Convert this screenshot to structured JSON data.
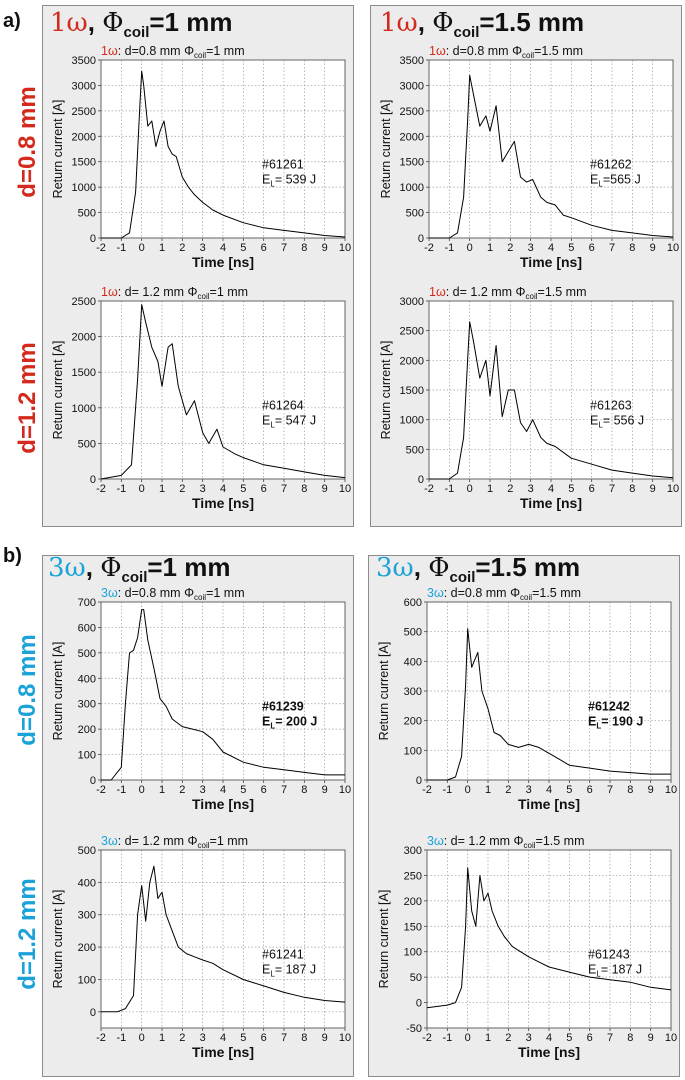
{
  "section_labels": [
    "a)",
    "b)"
  ],
  "colors": {
    "red": "#d42a1e",
    "blue": "#1ba2d8",
    "grid": "#9a9a9a",
    "frame": "#8c8c8c",
    "panel_bg": "#ececec"
  },
  "figure": {
    "a": {
      "col_titles": [
        {
          "omega": "1ω",
          "sep": ", ",
          "phi": "Φ",
          "sub": "coil",
          "val": "=1 mm"
        },
        {
          "omega": "1ω",
          "sep": ", ",
          "phi": "Φ",
          "sub": "coil",
          "val": "=1.5 mm"
        }
      ],
      "row_labels": [
        "d=0.8 mm",
        "d=1.2 mm"
      ]
    },
    "b": {
      "col_titles": [
        {
          "omega": "3ω",
          "sep": ", ",
          "phi": "Φ",
          "sub": "coil",
          "val": "=1 mm"
        },
        {
          "omega": "3ω",
          "sep": ", ",
          "phi": "Φ",
          "sub": "coil",
          "val": "=1.5 mm"
        }
      ],
      "row_labels": [
        "d=0.8 mm",
        "d=1.2 mm"
      ]
    }
  },
  "chart_data": [
    {
      "type": "line",
      "omega": "1ω",
      "title": ": d=0.8 mm Φcoil=1 mm",
      "xlabel": "Time [ns]",
      "ylabel": "Return current [A]",
      "xlim": [
        -2,
        10
      ],
      "ylim": [
        0,
        3500
      ],
      "yticks": [
        0,
        500,
        1000,
        1500,
        2000,
        2500,
        3000,
        3500
      ],
      "xticks": [
        -2,
        -1,
        0,
        1,
        2,
        3,
        4,
        5,
        6,
        7,
        8,
        9,
        10
      ],
      "shot": "#61261",
      "energy_prefix": "E",
      "energy_sub": "L",
      "energy_value": "= 539 J",
      "bold_annotation": false,
      "x": [
        -2,
        -1,
        -0.6,
        -0.3,
        -0.1,
        0,
        0.1,
        0.3,
        0.5,
        0.7,
        0.9,
        1.1,
        1.3,
        1.5,
        1.7,
        2,
        2.3,
        2.6,
        3,
        3.5,
        4,
        5,
        6,
        7,
        8,
        9,
        10
      ],
      "y": [
        0,
        0,
        100,
        900,
        2500,
        3280,
        3000,
        2200,
        2300,
        1800,
        2100,
        2300,
        1800,
        1650,
        1600,
        1200,
        1000,
        850,
        700,
        550,
        450,
        300,
        200,
        150,
        100,
        50,
        20
      ]
    },
    {
      "type": "line",
      "omega": "1ω",
      "title": ": d=0.8 mm Φcoil=1.5 mm",
      "xlabel": "Time [ns]",
      "ylabel": "Return current [A]",
      "xlim": [
        -2,
        10
      ],
      "ylim": [
        0,
        3500
      ],
      "yticks": [
        0,
        500,
        1000,
        1500,
        2000,
        2500,
        3000,
        3500
      ],
      "xticks": [
        -2,
        -1,
        0,
        1,
        2,
        3,
        4,
        5,
        6,
        7,
        8,
        9,
        10
      ],
      "shot": "#61262",
      "energy_prefix": "E",
      "energy_sub": "L",
      "energy_value": "=565 J",
      "bold_annotation": false,
      "x": [
        -2,
        -1,
        -0.6,
        -0.3,
        -0.1,
        0,
        0.2,
        0.5,
        0.8,
        1,
        1.3,
        1.6,
        1.9,
        2.2,
        2.5,
        2.8,
        3.1,
        3.5,
        3.8,
        4.2,
        4.6,
        5,
        6,
        7,
        8,
        9,
        10
      ],
      "y": [
        0,
        0,
        100,
        800,
        2300,
        3200,
        2800,
        2200,
        2400,
        2100,
        2600,
        1500,
        1700,
        1900,
        1200,
        1100,
        1150,
        800,
        700,
        650,
        450,
        400,
        250,
        150,
        100,
        50,
        20
      ]
    },
    {
      "type": "line",
      "omega": "1ω",
      "title": ": d= 1.2 mm Φcoil=1 mm",
      "xlabel": "Time [ns]",
      "ylabel": "Return current [A]",
      "xlim": [
        -2,
        10
      ],
      "ylim": [
        0,
        2500
      ],
      "yticks": [
        0,
        500,
        1000,
        1500,
        2000,
        2500
      ],
      "xticks": [
        -2,
        -1,
        0,
        1,
        2,
        3,
        4,
        5,
        6,
        7,
        8,
        9,
        10
      ],
      "shot": "#61264",
      "energy_prefix": "E",
      "energy_sub": "L",
      "energy_value": "= 547 J",
      "bold_annotation": false,
      "x": [
        -2,
        -1,
        -0.5,
        -0.2,
        0,
        0.2,
        0.5,
        0.8,
        1,
        1.3,
        1.5,
        1.8,
        2.2,
        2.6,
        3,
        3.3,
        3.7,
        4,
        4.3,
        4.6,
        5,
        6,
        7,
        8,
        9,
        10
      ],
      "y": [
        0,
        50,
        200,
        1400,
        2450,
        2200,
        1850,
        1650,
        1300,
        1850,
        1900,
        1300,
        900,
        1100,
        650,
        500,
        700,
        450,
        400,
        350,
        300,
        200,
        150,
        100,
        50,
        20
      ]
    },
    {
      "type": "line",
      "omega": "1ω",
      "title": ": d= 1.2 mm Φcoil=1.5 mm",
      "xlabel": "Time [ns]",
      "ylabel": "Return current [A]",
      "xlim": [
        -2,
        10
      ],
      "ylim": [
        0,
        3000
      ],
      "yticks": [
        0,
        500,
        1000,
        1500,
        2000,
        2500,
        3000
      ],
      "xticks": [
        -2,
        -1,
        0,
        1,
        2,
        3,
        4,
        5,
        6,
        7,
        8,
        9,
        10
      ],
      "shot": "#61263",
      "energy_prefix": "E",
      "energy_sub": "L",
      "energy_value": "= 556 J",
      "bold_annotation": false,
      "x": [
        -2,
        -1,
        -0.6,
        -0.3,
        -0.1,
        0,
        0.2,
        0.5,
        0.8,
        1,
        1.3,
        1.6,
        1.9,
        2.2,
        2.5,
        2.8,
        3.1,
        3.5,
        3.8,
        4.2,
        4.6,
        5,
        6,
        7,
        8,
        9,
        10
      ],
      "y": [
        0,
        0,
        100,
        700,
        2000,
        2650,
        2300,
        1700,
        2000,
        1400,
        2250,
        1050,
        1500,
        1500,
        950,
        800,
        1000,
        700,
        600,
        550,
        450,
        350,
        250,
        150,
        100,
        50,
        20
      ]
    },
    {
      "type": "line",
      "omega": "3ω",
      "title": ": d=0.8 mm Φcoil=1 mm",
      "xlabel": "Time [ns]",
      "ylabel": "Return current [A]",
      "xlim": [
        -2,
        10
      ],
      "ylim": [
        0,
        700
      ],
      "yticks": [
        0,
        100,
        200,
        300,
        400,
        500,
        600,
        700
      ],
      "xticks": [
        -2,
        -1,
        0,
        1,
        2,
        3,
        4,
        5,
        6,
        7,
        8,
        9,
        10
      ],
      "shot": "#61239",
      "energy_prefix": "E",
      "energy_sub": "L",
      "energy_value": "= 200 J",
      "bold_annotation": true,
      "x": [
        -2,
        -1.5,
        -1,
        -0.8,
        -0.6,
        -0.4,
        -0.2,
        0,
        0.1,
        0.3,
        0.6,
        0.9,
        1.2,
        1.5,
        2,
        2.5,
        3,
        3.5,
        4,
        5,
        6,
        7,
        8,
        9,
        10
      ],
      "y": [
        0,
        0,
        50,
        300,
        500,
        510,
        560,
        670,
        670,
        550,
        440,
        320,
        290,
        240,
        210,
        200,
        190,
        160,
        110,
        70,
        50,
        40,
        30,
        20,
        20
      ]
    },
    {
      "type": "line",
      "omega": "3ω",
      "title": ": d=0.8 mm Φcoil=1.5 mm",
      "xlabel": "Time [ns]",
      "ylabel": "Return current [A]",
      "xlim": [
        -2,
        10
      ],
      "ylim": [
        0,
        600
      ],
      "yticks": [
        0,
        100,
        200,
        300,
        400,
        500,
        600
      ],
      "xticks": [
        -2,
        -1,
        0,
        1,
        2,
        3,
        4,
        5,
        6,
        7,
        8,
        9,
        10
      ],
      "shot": "#61242",
      "energy_prefix": "E",
      "energy_sub": "L",
      "energy_value": "= 190 J",
      "bold_annotation": true,
      "x": [
        -2,
        -1,
        -0.6,
        -0.3,
        -0.1,
        0,
        0.2,
        0.5,
        0.7,
        1,
        1.3,
        1.6,
        2,
        2.5,
        3,
        3.5,
        4,
        4.5,
        5,
        6,
        7,
        8,
        9,
        10
      ],
      "y": [
        0,
        0,
        10,
        80,
        320,
        510,
        380,
        430,
        300,
        240,
        160,
        150,
        120,
        110,
        120,
        110,
        90,
        70,
        50,
        40,
        30,
        25,
        20,
        20
      ]
    },
    {
      "type": "line",
      "omega": "3ω",
      "title": ": d= 1.2 mm Φcoil=1 mm",
      "xlabel": "Time [ns]",
      "ylabel": "Return current [A]",
      "xlim": [
        -2,
        10
      ],
      "ylim": [
        -50,
        500
      ],
      "yticks": [
        0,
        100,
        200,
        300,
        400,
        500
      ],
      "xticks": [
        -2,
        -1,
        0,
        1,
        2,
        3,
        4,
        5,
        6,
        7,
        8,
        9,
        10
      ],
      "shot": "#61241",
      "energy_prefix": "E",
      "energy_sub": "L",
      "energy_value": "= 187 J",
      "bold_annotation": false,
      "x": [
        -2,
        -1.2,
        -0.8,
        -0.4,
        -0.2,
        0,
        0.2,
        0.4,
        0.6,
        0.8,
        1,
        1.2,
        1.5,
        1.8,
        2.2,
        2.6,
        3,
        3.5,
        4,
        5,
        6,
        7,
        8,
        9,
        10
      ],
      "y": [
        0,
        0,
        10,
        50,
        300,
        390,
        280,
        400,
        450,
        350,
        370,
        300,
        250,
        200,
        180,
        170,
        160,
        150,
        130,
        100,
        80,
        60,
        45,
        35,
        30
      ]
    },
    {
      "type": "line",
      "omega": "3ω",
      "title": ": d= 1.2 mm Φcoil=1.5 mm",
      "xlabel": "Time [ns]",
      "ylabel": "Return current [A]",
      "xlim": [
        -2,
        10
      ],
      "ylim": [
        -50,
        300
      ],
      "yticks": [
        -50,
        0,
        50,
        100,
        150,
        200,
        250,
        300
      ],
      "xticks": [
        -2,
        -1,
        0,
        1,
        2,
        3,
        4,
        5,
        6,
        7,
        8,
        9,
        10
      ],
      "shot": "#61243",
      "energy_prefix": "E",
      "energy_sub": "L",
      "energy_value": "= 187 J",
      "bold_annotation": false,
      "x": [
        -2,
        -1,
        -0.6,
        -0.3,
        -0.1,
        0,
        0.2,
        0.4,
        0.6,
        0.8,
        1,
        1.2,
        1.5,
        1.8,
        2.2,
        2.6,
        3,
        3.5,
        4,
        5,
        6,
        7,
        8,
        9,
        10
      ],
      "y": [
        -10,
        -5,
        0,
        30,
        150,
        265,
        180,
        150,
        250,
        200,
        215,
        180,
        150,
        130,
        110,
        100,
        90,
        80,
        70,
        60,
        50,
        45,
        40,
        30,
        25
      ]
    }
  ]
}
